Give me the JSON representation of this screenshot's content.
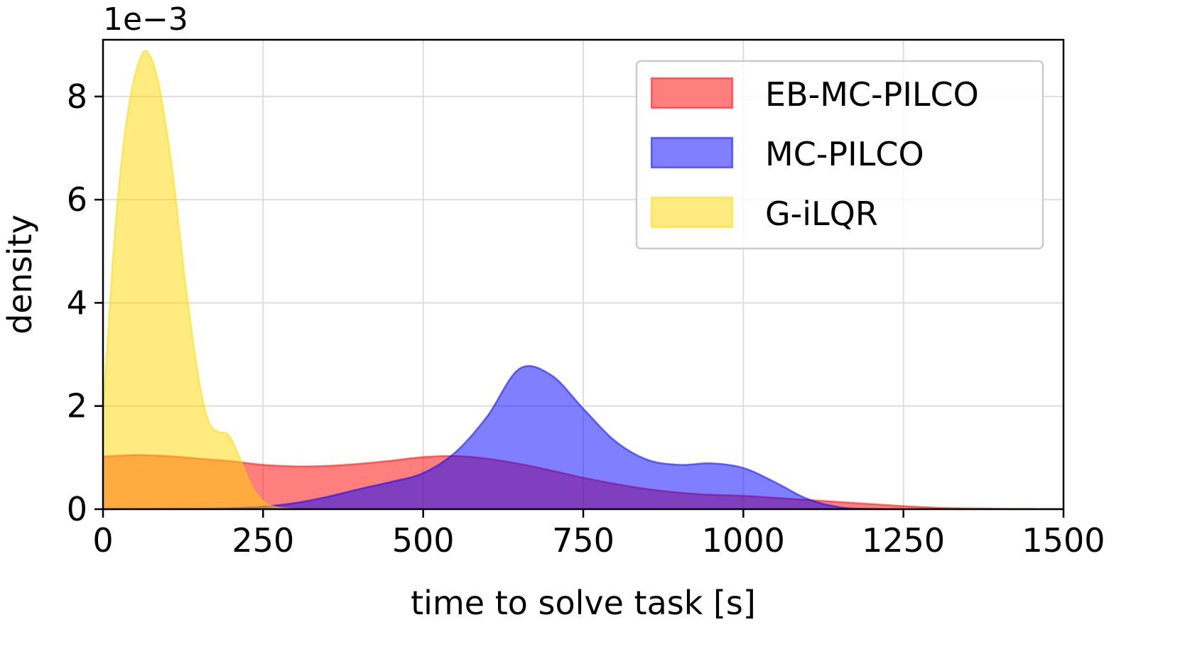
{
  "chart_data": {
    "type": "area",
    "xlabel": "time to solve task [s]",
    "ylabel": "density",
    "y_offset_text": "1e−3",
    "xlim": [
      0,
      1500
    ],
    "ylim": [
      0,
      9.1
    ],
    "x_ticks": [
      0,
      250,
      500,
      750,
      1000,
      1250,
      1500
    ],
    "y_ticks": [
      0,
      2,
      4,
      6,
      8
    ],
    "x_tick_labels": [
      "0",
      "250",
      "500",
      "750",
      "1000",
      "1250",
      "1500"
    ],
    "y_tick_labels": [
      "0",
      "2",
      "4",
      "6",
      "8"
    ],
    "grid": true,
    "legend_position": "top-right",
    "series": [
      {
        "name": "EB-MC-PILCO",
        "color": "#ff0000",
        "points": [
          [
            0,
            1.02
          ],
          [
            50,
            1.05
          ],
          [
            100,
            1.03
          ],
          [
            150,
            0.98
          ],
          [
            200,
            0.93
          ],
          [
            250,
            0.86
          ],
          [
            300,
            0.83
          ],
          [
            350,
            0.84
          ],
          [
            400,
            0.88
          ],
          [
            450,
            0.94
          ],
          [
            500,
            1.01
          ],
          [
            550,
            1.03
          ],
          [
            600,
            0.98
          ],
          [
            650,
            0.88
          ],
          [
            700,
            0.75
          ],
          [
            750,
            0.61
          ],
          [
            800,
            0.49
          ],
          [
            850,
            0.39
          ],
          [
            900,
            0.32
          ],
          [
            950,
            0.28
          ],
          [
            1000,
            0.26
          ],
          [
            1050,
            0.22
          ],
          [
            1100,
            0.18
          ],
          [
            1150,
            0.14
          ],
          [
            1200,
            0.1
          ],
          [
            1250,
            0.06
          ],
          [
            1300,
            0.03
          ],
          [
            1350,
            0.015
          ],
          [
            1400,
            0.007
          ],
          [
            1450,
            0.003
          ],
          [
            1500,
            0.001
          ]
        ]
      },
      {
        "name": "MC-PILCO",
        "color": "#0000ff",
        "points": [
          [
            0,
            0
          ],
          [
            150,
            0.01
          ],
          [
            200,
            0.02
          ],
          [
            250,
            0.05
          ],
          [
            300,
            0.12
          ],
          [
            350,
            0.24
          ],
          [
            400,
            0.39
          ],
          [
            450,
            0.53
          ],
          [
            500,
            0.7
          ],
          [
            550,
            1.1
          ],
          [
            600,
            1.8
          ],
          [
            650,
            2.72
          ],
          [
            700,
            2.6
          ],
          [
            750,
            1.95
          ],
          [
            800,
            1.32
          ],
          [
            850,
            0.96
          ],
          [
            900,
            0.86
          ],
          [
            950,
            0.89
          ],
          [
            1000,
            0.8
          ],
          [
            1050,
            0.52
          ],
          [
            1100,
            0.2
          ],
          [
            1150,
            0.04
          ],
          [
            1200,
            0.005
          ],
          [
            1250,
            0
          ]
        ]
      },
      {
        "name": "G-iLQR",
        "color": "#ffd700",
        "points": [
          [
            0,
            1.9
          ],
          [
            20,
            5.6
          ],
          [
            40,
            7.8
          ],
          [
            60,
            8.8
          ],
          [
            75,
            8.75
          ],
          [
            90,
            8.05
          ],
          [
            110,
            6.4
          ],
          [
            130,
            4.25
          ],
          [
            150,
            2.5
          ],
          [
            165,
            1.7
          ],
          [
            180,
            1.5
          ],
          [
            195,
            1.45
          ],
          [
            210,
            1.1
          ],
          [
            230,
            0.5
          ],
          [
            250,
            0.15
          ],
          [
            270,
            0.04
          ],
          [
            300,
            0
          ]
        ]
      }
    ]
  }
}
